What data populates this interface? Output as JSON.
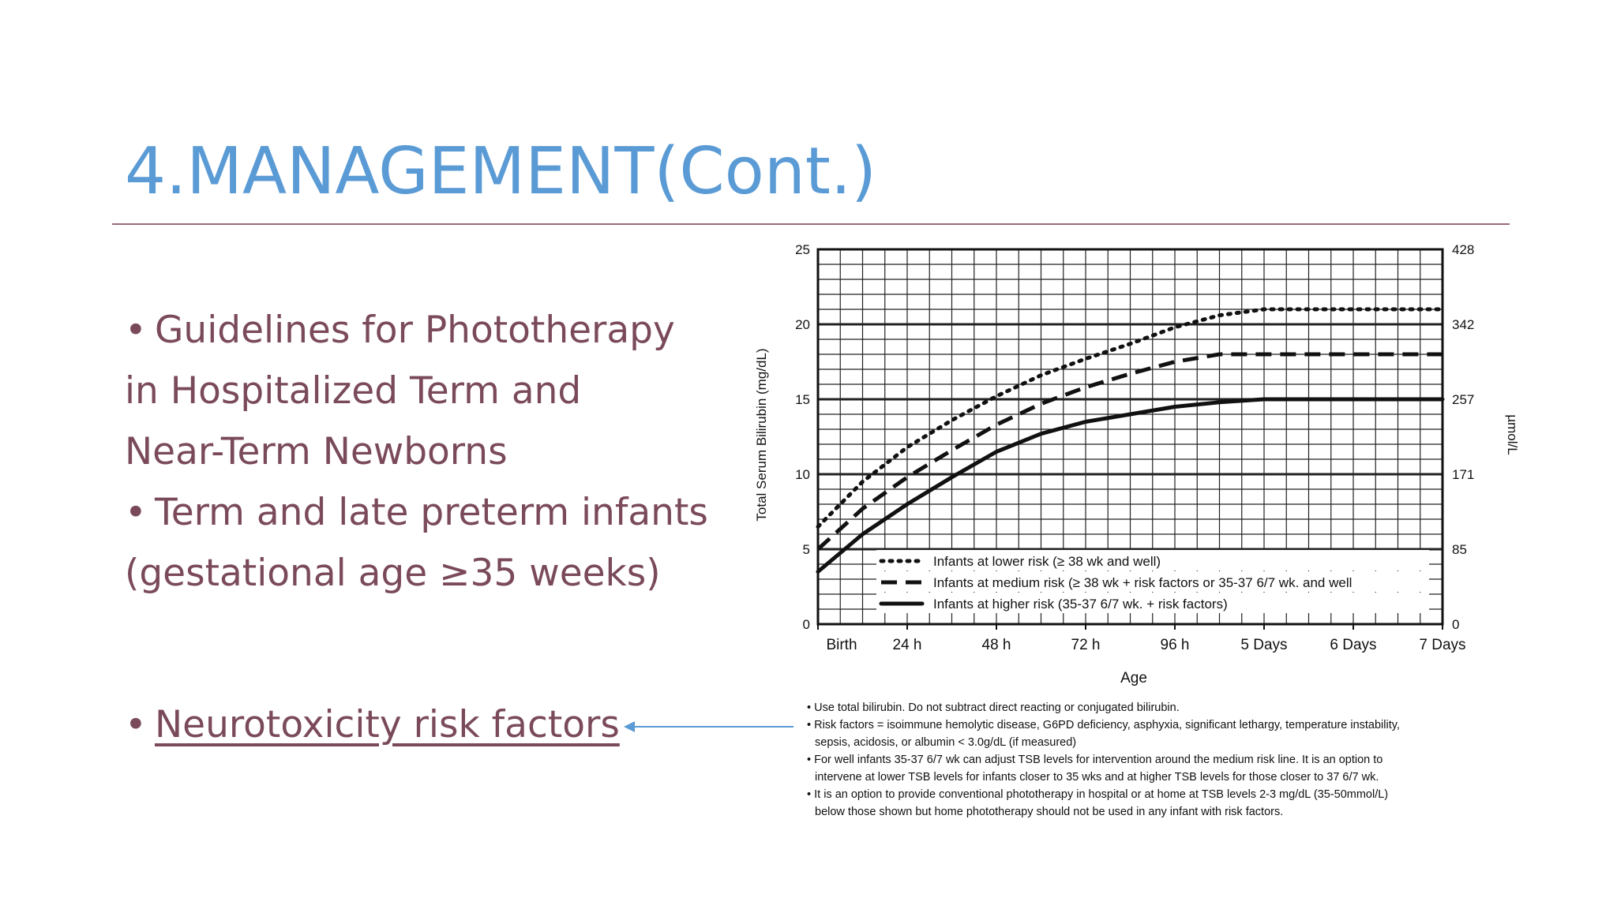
{
  "slide": {
    "title": "4.MANAGEMENT(Cont.)",
    "bullets": [
      {
        "bullet": "•",
        "text": "Guidelines for Phototherapy"
      },
      {
        "bullet": "",
        "text": "in Hospitalized Term and"
      },
      {
        "bullet": "",
        "text": "Near-Term Newborns"
      },
      {
        "bullet": "•",
        "text": "Term and late preterm infants"
      },
      {
        "bullet": "",
        "text": "(gestational age ≥35 weeks)"
      }
    ],
    "link_bullet": "•",
    "link_text": "Neurotoxicity risk factors"
  },
  "colors": {
    "title": "#5b9bd5",
    "body_text": "#7a4a5b",
    "rule": "#9c6b7b",
    "arrow": "#5b9bd5"
  },
  "chart_data": {
    "type": "line",
    "xlabel": "Age",
    "ylabel": "Total Serum Bilirubin (mg/dL)",
    "y2label": "µmol/L",
    "x_tick_labels": [
      "Birth",
      "24 h",
      "48 h",
      "72 h",
      "96 h",
      "5 Days",
      "6 Days",
      "7 Days"
    ],
    "x_unit": "hours",
    "xlim": [
      0,
      168
    ],
    "ylim": [
      0,
      25
    ],
    "y_ticks": [
      0,
      5,
      10,
      15,
      20,
      25
    ],
    "y2_ticks": [
      "0",
      "85",
      "171",
      "257",
      "342",
      "428"
    ],
    "grid": true,
    "legend_position": "bottom-left-inside",
    "series": [
      {
        "name": "Infants at lower risk (≥ 38 wk and well)",
        "style": "dotted",
        "x": [
          0,
          12,
          24,
          36,
          48,
          60,
          72,
          84,
          96,
          108,
          120,
          132,
          144,
          156,
          168
        ],
        "y": [
          6.5,
          9.5,
          11.8,
          13.6,
          15.2,
          16.6,
          17.7,
          18.7,
          19.8,
          20.6,
          21.0,
          21.0,
          21.0,
          21.0,
          21.0
        ]
      },
      {
        "name": "Infants at medium risk (≥ 38 wk + risk factors or 35-37 6/7 wk. and well",
        "style": "dashed",
        "x": [
          0,
          12,
          24,
          36,
          48,
          60,
          72,
          84,
          96,
          108,
          120,
          132,
          144,
          156,
          168
        ],
        "y": [
          5.0,
          7.7,
          9.8,
          11.6,
          13.3,
          14.7,
          15.8,
          16.7,
          17.5,
          18.0,
          18.0,
          18.0,
          18.0,
          18.0,
          18.0
        ]
      },
      {
        "name": "Infants at higher risk (35-37 6/7 wk. + risk factors)",
        "style": "solid",
        "x": [
          0,
          12,
          24,
          36,
          48,
          60,
          72,
          84,
          96,
          108,
          120,
          132,
          144,
          156,
          168
        ],
        "y": [
          3.5,
          6.0,
          8.0,
          9.8,
          11.5,
          12.7,
          13.5,
          14.0,
          14.5,
          14.8,
          15.0,
          15.0,
          15.0,
          15.0,
          15.0
        ]
      }
    ],
    "notes": [
      {
        "text": "• Use total bilirubin.  Do not subtract direct reacting or conjugated bilirubin.",
        "indent": false
      },
      {
        "text": "• Risk factors = isoimmune hemolytic disease, G6PD deficiency, asphyxia, significant lethargy, temperature instability,",
        "indent": false
      },
      {
        "text": "sepsis, acidosis, or albumin < 3.0g/dL (if measured)",
        "indent": true
      },
      {
        "text": "• For well infants 35-37 6/7 wk can adjust TSB levels for intervention around the medium risk line.  It is an option to",
        "indent": false
      },
      {
        "text": "intervene at lower TSB levels for infants closer to 35 wks and at higher TSB levels for those closer to 37 6/7 wk.",
        "indent": true
      },
      {
        "text": "• It is an option to provide conventional phototherapy in hospital or at home at TSB levels 2-3 mg/dL (35-50mmol/L)",
        "indent": false
      },
      {
        "text": "below those shown but home phototherapy should not be used in any infant with risk factors.",
        "indent": true
      }
    ]
  }
}
